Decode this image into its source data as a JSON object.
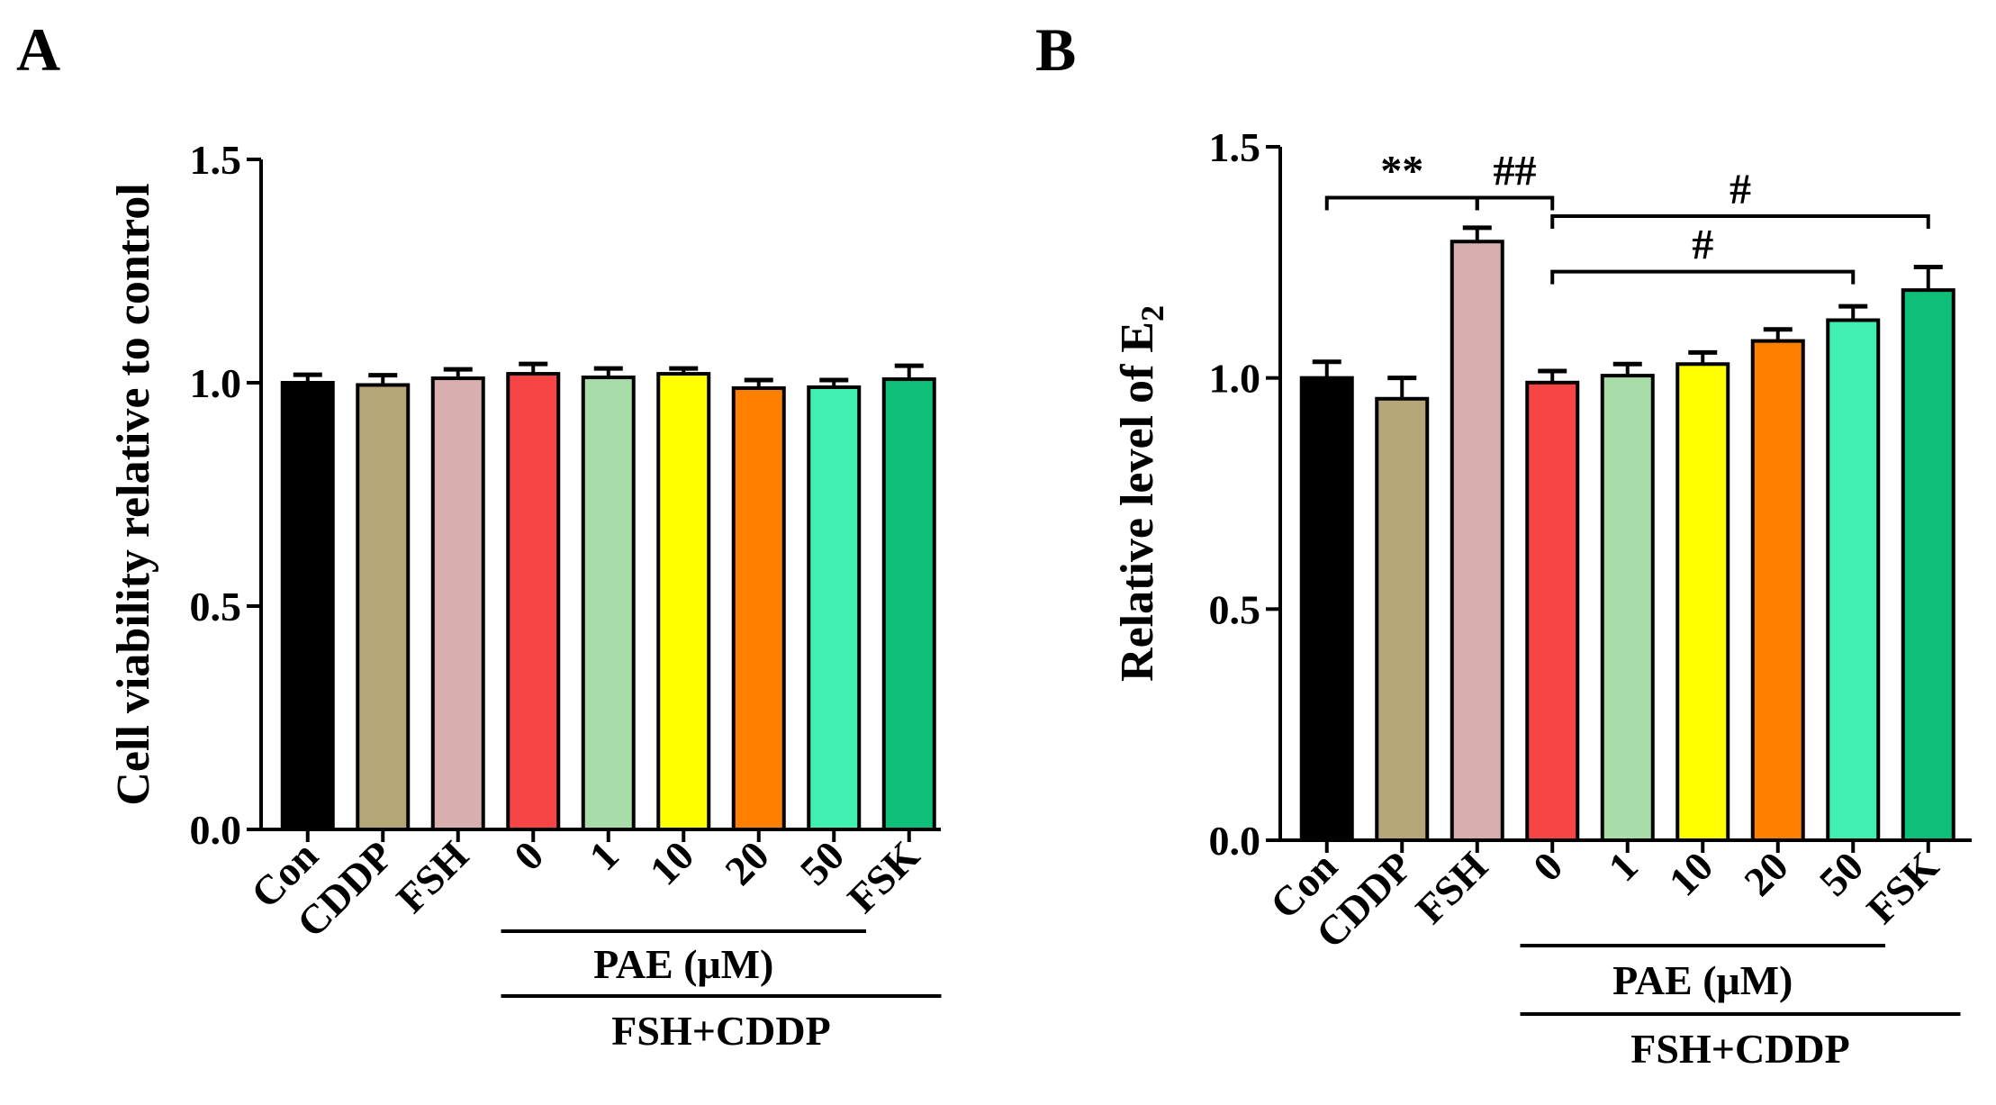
{
  "chart_data": [
    {
      "panel": "A",
      "type": "bar",
      "ylabel": "Cell viability relative to control",
      "ylim": [
        0,
        1.5
      ],
      "yticks": [
        "0.0",
        "0.5",
        "1.0",
        "1.5"
      ],
      "categories": [
        "Con",
        "CDDP",
        "FSH",
        "0",
        "1",
        "10",
        "20",
        "50",
        "FSK"
      ],
      "values": [
        1.0,
        0.995,
        1.01,
        1.02,
        1.012,
        1.02,
        0.988,
        0.99,
        1.008
      ],
      "errors": [
        0.018,
        0.022,
        0.02,
        0.022,
        0.02,
        0.012,
        0.018,
        0.016,
        0.03
      ],
      "colors": [
        "#000000",
        "#b5a678",
        "#d9aeae",
        "#f74545",
        "#a8dca8",
        "#ffff00",
        "#ff7f00",
        "#40f0b0",
        "#0dbf78"
      ],
      "groups": [
        {
          "label": "PAE (μM)",
          "from": 3,
          "to": 7
        },
        {
          "label": "FSH+CDDP",
          "from": 3,
          "to": 8
        }
      ],
      "annotations": []
    },
    {
      "panel": "B",
      "type": "bar",
      "ylabel": "Relative level of E2",
      "ylim": [
        0,
        1.5
      ],
      "yticks": [
        "0.0",
        "0.5",
        "1.0",
        "1.5"
      ],
      "categories": [
        "Con",
        "CDDP",
        "FSH",
        "0",
        "1",
        "10",
        "20",
        "50",
        "FSK"
      ],
      "values": [
        1.0,
        0.955,
        1.295,
        0.99,
        1.005,
        1.03,
        1.08,
        1.125,
        1.19
      ],
      "errors": [
        0.035,
        0.045,
        0.03,
        0.025,
        0.025,
        0.025,
        0.025,
        0.03,
        0.05
      ],
      "colors": [
        "#000000",
        "#b5a678",
        "#d9aeae",
        "#f74545",
        "#a8dca8",
        "#ffff00",
        "#ff7f00",
        "#40f0b0",
        "#0dbf78"
      ],
      "groups": [
        {
          "label": "PAE (μM)",
          "from": 3,
          "to": 7
        },
        {
          "label": "FSH+CDDP",
          "from": 3,
          "to": 8
        }
      ],
      "annotations": [
        {
          "text": "**",
          "from": 0,
          "to": 2,
          "y": 1.39
        },
        {
          "text": "##",
          "from": 2,
          "to": 3,
          "y": 1.39
        },
        {
          "text": "#",
          "from": 3,
          "to": 8,
          "y": 1.35
        },
        {
          "text": "#",
          "from": 3,
          "to": 7,
          "y": 1.23
        }
      ]
    }
  ]
}
